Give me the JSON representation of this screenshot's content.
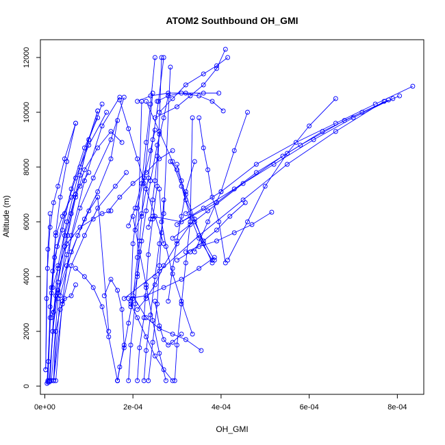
{
  "chart_data": {
    "type": "line",
    "title": "ATOM2 Southbound OH_GMI",
    "xlabel": "OH_GMI",
    "ylabel": "Altitude (m)",
    "xlim": [
      -1e-05,
      0.00086
    ],
    "ylim": [
      -300,
      12650
    ],
    "x_ticks": [
      {
        "value": 0,
        "label": "0e+00"
      },
      {
        "value": 0.0002,
        "label": "2e-04"
      },
      {
        "value": 0.0004,
        "label": "4e-04"
      },
      {
        "value": 0.0006,
        "label": "6e-04"
      },
      {
        "value": 0.0008,
        "label": "8e-04"
      }
    ],
    "y_ticks": [
      {
        "value": 0,
        "label": "0"
      },
      {
        "value": 2000,
        "label": "2000"
      },
      {
        "value": 4000,
        "label": "4000"
      },
      {
        "value": 6000,
        "label": "6000"
      },
      {
        "value": 8000,
        "label": "8000"
      },
      {
        "value": 10000,
        "label": "10000"
      },
      {
        "value": 12000,
        "label": "12000"
      }
    ],
    "grid": false,
    "legend": "none",
    "colors": {
      "series": "#0000ff",
      "axis": "#000000",
      "background": "#ffffff"
    },
    "marker": "open-circle",
    "series": [
      {
        "x": [
          7e-06,
          1.2e-05,
          1.8e-05,
          2.5e-05,
          3.5e-05,
          5e-05,
          7e-05
        ],
        "y": [
          200,
          2900,
          4200,
          5600,
          6900,
          8200,
          9600
        ]
      },
      {
        "x": [
          1.2e-05,
          2e-05,
          3e-05,
          5e-05,
          8e-05,
          0.00012
        ],
        "y": [
          200,
          2700,
          4400,
          6000,
          8000,
          10050
        ]
      },
      {
        "x": [
          1e-05,
          2.5e-05,
          4.5e-05,
          7e-05,
          0.0001,
          0.00013
        ],
        "y": [
          150,
          3300,
          5500,
          7000,
          9000,
          10300
        ]
      },
      {
        "x": [
          2.5e-05,
          4e-05,
          6e-05,
          9e-05,
          0.00013,
          0.00017
        ],
        "y": [
          200,
          3100,
          5500,
          7500,
          9500,
          10550
        ]
      },
      {
        "x": [
          2e-06,
          6e-06,
          1.2e-05,
          2e-05,
          3e-05,
          4.5e-05,
          7e-05
        ],
        "y": [
          600,
          4300,
          5800,
          6700,
          7300,
          8300,
          9600
        ]
      },
      {
        "x": [
          8e-06,
          1.5e-05,
          2.8e-05,
          4.5e-05,
          7e-05,
          0.0001,
          0.00014
        ],
        "y": [
          900,
          3600,
          5100,
          6300,
          7600,
          8800,
          10000
        ]
      },
      {
        "x": [
          5e-06,
          1.2e-05,
          2.2e-05,
          4e-05,
          6e-05,
          9e-05,
          0.00012
        ],
        "y": [
          100,
          2500,
          4700,
          5700,
          7200,
          8700,
          9800
        ]
      },
      {
        "x": [
          1e-05,
          1.8e-05,
          3e-05,
          5e-05,
          8e-05,
          0.00011,
          0.00015,
          0.00018
        ],
        "y": [
          200,
          2000,
          3500,
          4800,
          6500,
          7600,
          9000,
          10550
        ]
      },
      {
        "x": [
          7e-06,
          1.5e-05,
          2.5e-05,
          4e-05,
          6e-05,
          8e-05,
          0.0001
        ],
        "y": [
          150,
          3400,
          5500,
          6200,
          6900,
          7300,
          7800
        ]
      },
      {
        "x": [
          2e-05,
          3.5e-05,
          6e-05,
          9e-05,
          0.00012,
          0.00015,
          0.000165
        ],
        "y": [
          200,
          3300,
          4900,
          6100,
          7100,
          8300,
          9700
        ]
      },
      {
        "x": [
          1.5e-05,
          3e-05,
          5.2e-05,
          7e-05,
          9e-05,
          0.00012,
          0.00015,
          0.000175
        ],
        "y": [
          200,
          3200,
          5500,
          6900,
          7900,
          8700,
          9300,
          8900
        ]
      },
      {
        "x": [
          0.00012,
          0.0001,
          8e-05,
          6e-05,
          4.5e-05,
          3e-05,
          2e-05
        ],
        "y": [
          10050,
          9000,
          7700,
          6300,
          5100,
          3800,
          2700
        ]
      },
      {
        "x": [
          1.2e-05,
          7e-06,
          4e-06,
          2e-06
        ],
        "y": [
          6300,
          5000,
          3200,
          600
        ]
      },
      {
        "x": [
          7e-05,
          6e-05,
          4.5e-05,
          3.5e-05,
          2.5e-05,
          2e-05
        ],
        "y": [
          3700,
          3300,
          3200,
          2800,
          2000,
          200
        ]
      },
      {
        "x": [
          2e-05,
          4e-05,
          6e-05,
          9e-05,
          0.00012,
          0.00016,
          0.000185
        ],
        "y": [
          200,
          3000,
          4400,
          5500,
          6500,
          7300,
          7800
        ]
      },
      {
        "x": [
          1.5e-05,
          3e-05,
          5e-05,
          7.5e-05,
          0.0001,
          0.00012,
          0.000145
        ],
        "y": [
          2500,
          3400,
          4400,
          5500,
          6400,
          6900,
          2000
        ]
      },
      {
        "x": [
          0.000165,
          0.000165,
          0.00018,
          0.000175,
          0.000165,
          0.00015,
          0.000135
        ],
        "y": [
          200,
          200,
          1500,
          2800,
          3500,
          3900,
          3300
        ]
      },
      {
        "x": [
          1.8e-05,
          3e-05,
          5e-05,
          8e-05,
          0.00011,
          0.00013,
          0.00015
        ],
        "y": [
          3600,
          4300,
          5200,
          5800,
          6100,
          6300,
          6400
        ]
      },
      {
        "x": [
          0.000165,
          0.000145,
          0.00013,
          0.00011,
          9e-05,
          7e-05
        ],
        "y": [
          200,
          1800,
          2900,
          3600,
          4000,
          4300
        ]
      },
      {
        "x": [
          0.000195,
          0.00021,
          0.00022,
          0.00023,
          0.00024,
          0.000255,
          0.00027,
          0.00028
        ],
        "y": [
          2900,
          4000,
          5300,
          6400,
          7500,
          8800,
          9800,
          10600
        ]
      },
      {
        "x": [
          0.00019,
          0.000195,
          0.000205,
          0.00021,
          0.000215,
          0.00022,
          0.000225,
          0.000245
        ],
        "y": [
          200,
          1500,
          3000,
          4100,
          5300,
          6200,
          7400,
          10700
        ]
      },
      {
        "x": [
          0.00021,
          0.000215,
          0.000225,
          0.00023,
          0.000235,
          0.000245,
          0.000255,
          0.000265
        ],
        "y": [
          200,
          1400,
          2500,
          3600,
          4800,
          6100,
          7300,
          12000
        ]
      },
      {
        "x": [
          0.000225,
          0.00023,
          0.00024,
          0.00025,
          0.00026,
          0.00027,
          0.000285
        ],
        "y": [
          200,
          1300,
          2600,
          4000,
          5200,
          6300,
          11650
        ]
      },
      {
        "x": [
          0.000235,
          0.000245,
          0.000255,
          0.00026,
          0.000265,
          0.00027
        ],
        "y": [
          200,
          1600,
          3000,
          4400,
          5600,
          6800
        ]
      },
      {
        "x": [
          0.00025,
          0.00024,
          0.00023,
          0.00022,
          0.000205,
          0.00019
        ],
        "y": [
          12000,
          10300,
          8900,
          7400,
          6500,
          5850
        ]
      },
      {
        "x": [
          0.00027,
          0.000258,
          0.000245,
          0.000235,
          0.00022,
          0.000205
        ],
        "y": [
          12000,
          10400,
          9000,
          7600,
          6300,
          5700
        ]
      },
      {
        "x": [
          0.000165,
          0.00017,
          0.00018,
          0.00019,
          0.0002,
          0.00021,
          0.00022
        ],
        "y": [
          200,
          700,
          1400,
          2300,
          3200,
          4700,
          10400
        ]
      },
      {
        "x": [
          0.00023,
          0.00026,
          0.00029,
          0.00031,
          0.00033,
          0.00035,
          0.00038
        ],
        "y": [
          10400,
          9300,
          8200,
          7300,
          6200,
          5400,
          4600
        ]
      },
      {
        "x": [
          0.000295,
          0.0003,
          0.00031,
          0.00032,
          0.00033,
          0.000335
        ],
        "y": [
          200,
          1500,
          3000,
          4500,
          6000,
          9800
        ]
      },
      {
        "x": [
          0.00028,
          0.00029,
          0.0003,
          0.00031,
          0.00032,
          0.00034
        ],
        "y": [
          3100,
          4300,
          5300,
          6200,
          7100,
          8200
        ]
      },
      {
        "x": [
          0.0002,
          0.00023,
          0.00026,
          0.00029,
          0.00032,
          0.000355
        ],
        "y": [
          3300,
          2500,
          2100,
          1900,
          1700,
          1300
        ]
      },
      {
        "x": [
          0.00025,
          0.00026,
          0.00027,
          0.00028,
          0.00029,
          0.00031
        ],
        "y": [
          3100,
          2200,
          1700,
          1500,
          1600,
          1900
        ]
      },
      {
        "x": [
          0.000335,
          0.00031,
          0.00029,
          0.000275,
          0.000265,
          0.00026
        ],
        "y": [
          1900,
          3100,
          4100,
          5100,
          6000,
          7200
        ]
      },
      {
        "x": [
          0.00038,
          0.00036,
          0.00034,
          0.00032,
          0.0003,
          0.000285
        ],
        "y": [
          4500,
          5200,
          6100,
          7000,
          7900,
          8200
        ]
      },
      {
        "x": [
          0.000385,
          0.00036,
          0.00034,
          0.00032,
          0.00031,
          0.0003
        ],
        "y": [
          4600,
          5300,
          6000,
          6800,
          7500,
          8100
        ]
      },
      {
        "x": [
          0.00041,
          0.000395,
          0.00038,
          0.00037,
          0.00036,
          0.00035
        ],
        "y": [
          4500,
          6000,
          6900,
          7900,
          8700,
          9800
        ]
      },
      {
        "x": [
          0.00034,
          0.00037,
          0.0004,
          0.00043,
          0.00046
        ],
        "y": [
          4900,
          6000,
          7100,
          8600,
          10000
        ]
      },
      {
        "x": [
          0.00041,
          0.00039,
          0.00036,
          0.00033,
          0.0003,
          0.00025
        ],
        "y": [
          12300,
          11600,
          11000,
          10600,
          10200,
          9800
        ]
      },
      {
        "x": [
          0.000415,
          0.00039,
          0.00036,
          0.00032,
          0.00029,
          0.00026
        ],
        "y": [
          12000,
          11700,
          11400,
          11000,
          10500,
          10000
        ]
      },
      {
        "x": [
          0.000405,
          0.00038,
          0.00035,
          0.00031,
          0.00028,
          0.000255
        ],
        "y": [
          10050,
          10400,
          10600,
          10700,
          10600,
          10400
        ]
      },
      {
        "x": [
          0.000395,
          0.00036,
          0.00032,
          0.00028,
          0.00024,
          0.00021
        ],
        "y": [
          10700,
          10700,
          10700,
          10700,
          10600,
          10400
        ]
      },
      {
        "x": [
          0.000455,
          0.00042,
          0.00039,
          0.00036,
          0.00033,
          0.0003
        ],
        "y": [
          6700,
          6200,
          5700,
          5300,
          4900,
          4600
        ]
      },
      {
        "x": [
          0.000515,
          0.00047,
          0.00043,
          0.00039,
          0.00035,
          0.00032
        ],
        "y": [
          6350,
          5900,
          5600,
          5300,
          5100,
          4900
        ]
      },
      {
        "x": [
          0.00066,
          0.0006,
          0.00055,
          0.0005,
          0.00046,
          0.000415
        ],
        "y": [
          10500,
          9500,
          8500,
          7300,
          6000,
          4600
        ]
      },
      {
        "x": [
          0.000835,
          0.00075,
          0.00066,
          0.00057,
          0.00048,
          0.0004,
          0.00032
        ],
        "y": [
          10950,
          10300,
          9600,
          8900,
          8100,
          7100,
          6300
        ]
      },
      {
        "x": [
          0.000805,
          0.00072,
          0.00063,
          0.00054,
          0.00045,
          0.00037,
          0.00029
        ],
        "y": [
          10600,
          10000,
          9300,
          8400,
          7400,
          6400,
          5400
        ]
      },
      {
        "x": [
          0.00079,
          0.0007,
          0.00061,
          0.00052,
          0.00043,
          0.00036,
          0.0003
        ],
        "y": [
          10500,
          9800,
          9000,
          8100,
          7200,
          6500,
          5900
        ]
      },
      {
        "x": [
          0.00078,
          0.00068,
          0.00058,
          0.00048,
          0.00039,
          0.00031,
          0.000245
        ],
        "y": [
          10450,
          9700,
          8800,
          7800,
          6700,
          6000,
          6200
        ]
      },
      {
        "x": [
          0.00077,
          0.00066,
          0.00055,
          0.00045,
          0.00035,
          0.00026,
          0.00018
        ],
        "y": [
          10400,
          9300,
          8100,
          6800,
          5500,
          4200,
          3200
        ]
      },
      {
        "x": [
          0.000385,
          0.00035,
          0.00031,
          0.00027,
          0.00023,
          0.00019
        ],
        "y": [
          4700,
          4300,
          3900,
          3600,
          3300,
          3200
        ]
      },
      {
        "x": [
          0.00033,
          0.0003,
          0.00027,
          0.00025,
          0.00023,
          0.00021
        ],
        "y": [
          5900,
          5200,
          4400,
          3700,
          3200,
          2800
        ]
      },
      {
        "x": [
          0.00029,
          0.00027,
          0.00025,
          0.00023,
          0.00021,
          0.000195
        ],
        "y": [
          200,
          600,
          1100,
          1800,
          2500,
          3000
        ]
      },
      {
        "x": [
          0.000275,
          0.00026,
          0.000245,
          0.00023,
          0.000215,
          0.0002
        ],
        "y": [
          200,
          1200,
          2400,
          3700,
          4900,
          6200
        ]
      },
      {
        "x": [
          0.00025,
          0.00024,
          0.000225,
          0.00021,
          0.0002,
          0.000195
        ],
        "y": [
          9350,
          8600,
          7600,
          6500,
          5200,
          3100
        ]
      },
      {
        "x": [
          0.00026,
          0.000255,
          0.00025,
          0.000245,
          0.00024,
          0.000235
        ],
        "y": [
          9200,
          8400,
          7500,
          6800,
          6100,
          5800
        ]
      },
      {
        "x": [
          0.00017,
          0.00019,
          0.00021,
          0.00023,
          0.00025,
          0.00027
        ],
        "y": [
          10450,
          9400,
          8300,
          7200,
          6200,
          5200
        ]
      },
      {
        "x": [
          0.000145,
          0.00017,
          0.0002,
          0.00023,
          0.00026,
          0.00029
        ],
        "y": [
          6400,
          6900,
          7400,
          7800,
          8300,
          8600
        ]
      }
    ]
  }
}
